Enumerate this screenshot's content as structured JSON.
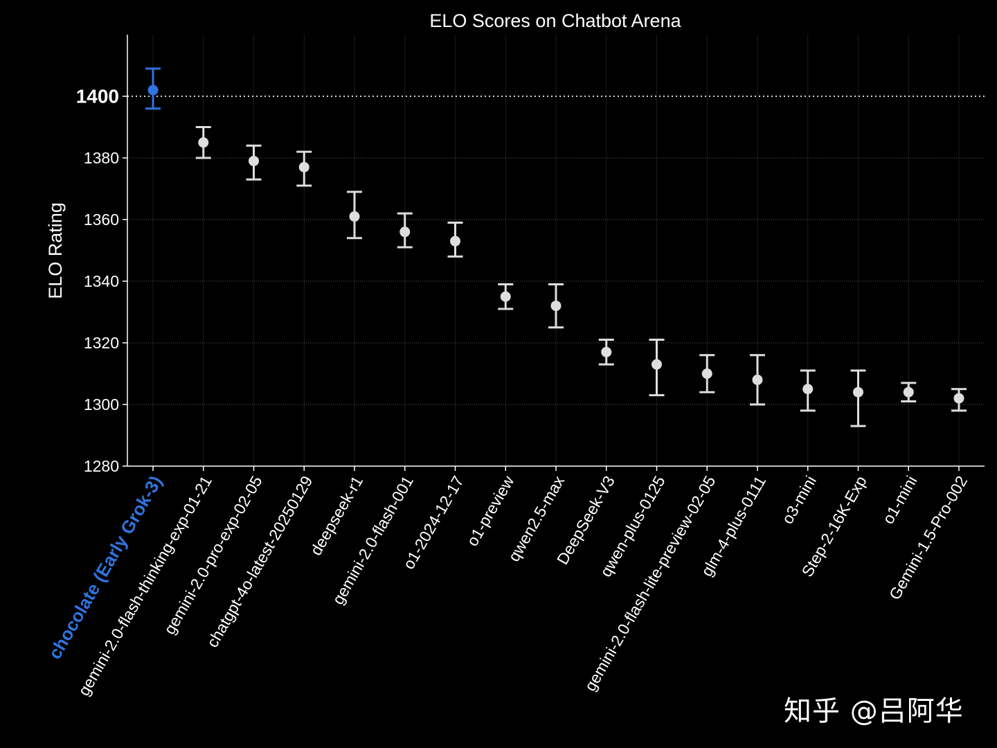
{
  "chart_data": {
    "type": "scatter",
    "title": "ELO Scores on Chatbot Arena",
    "xlabel": "",
    "ylabel": "ELO Rating",
    "ylim": [
      1280,
      1420
    ],
    "yticks": [
      1280,
      1300,
      1320,
      1340,
      1360,
      1380,
      1400
    ],
    "reference_line": 1400,
    "grid": "horizontal dotted",
    "colors": {
      "background": "#000000",
      "highlight": "#2f74e0",
      "points": "#dedede",
      "text": "#ffffff"
    },
    "categories": [
      "chocolate (Early Grok-3)",
      "gemini-2.0-flash-thinking-exp-01-21",
      "gemini-2.0-pro-exp-02-05",
      "chatgpt-4o-latest-20250129",
      "deepseek-r1",
      "gemini-2.0-flash-001",
      "o1-2024-12-17",
      "o1-preview",
      "qwen2.5-max",
      "DeepSeek-V3",
      "qwen-plus-0125",
      "gemini-2.0-flash-lite-preview-02-05",
      "glm-4-plus-0111",
      "o3-mini",
      "Step-2-16K-Exp",
      "o1-mini",
      "Gemini-1.5-Pro-002"
    ],
    "values": [
      1402,
      1385,
      1379,
      1377,
      1361,
      1356,
      1353,
      1335,
      1332,
      1317,
      1313,
      1310,
      1308,
      1305,
      1304,
      1304,
      1302
    ],
    "ci_upper": [
      1409,
      1390,
      1384,
      1382,
      1369,
      1362,
      1359,
      1339,
      1339,
      1321,
      1321,
      1316,
      1316,
      1311,
      1311,
      1307,
      1305
    ],
    "ci_lower": [
      1396,
      1380,
      1373,
      1371,
      1354,
      1351,
      1348,
      1331,
      1325,
      1313,
      1303,
      1304,
      1300,
      1298,
      1293,
      1301,
      1298
    ],
    "highlight_index": 0
  },
  "watermark": "知乎 @吕阿华"
}
